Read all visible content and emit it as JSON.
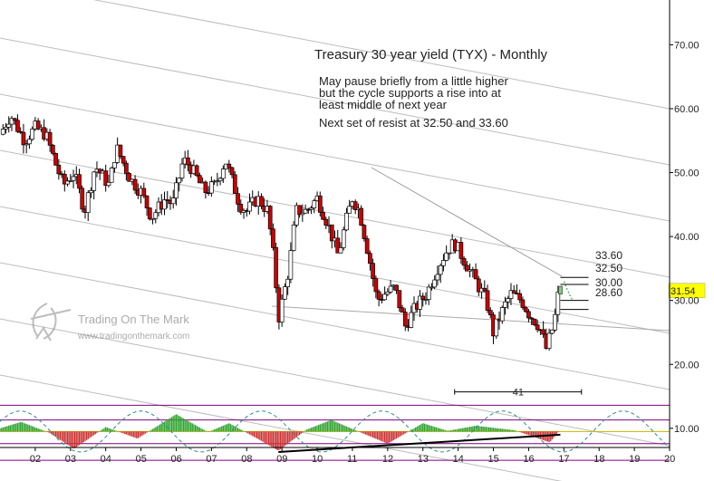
{
  "chart_data": {
    "type": "candlestick",
    "title": "Treasury 30 year yield (TYX) - Monthly",
    "annotations": [
      "May pause briefly from a little higher",
      "but the cycle supports a rise into at",
      "least middle of next year",
      "Next set of resist at 32.50 and 33.60"
    ],
    "y_ticks": [
      "70.00",
      "60.00",
      "50.00",
      "40.00",
      "30.00",
      "20.00",
      "10.00"
    ],
    "y_tick_values": [
      70,
      60,
      50,
      40,
      30,
      20,
      10
    ],
    "ylim": [
      7,
      77
    ],
    "x_ticks": [
      "02",
      "03",
      "04",
      "05",
      "06",
      "07",
      "08",
      "09",
      "10",
      "11",
      "12",
      "13",
      "14",
      "15",
      "16",
      "17",
      "18",
      "19",
      "20"
    ],
    "xlim": [
      2001.1,
      2020.1
    ],
    "last_price": "31.54",
    "resistance_labels": [
      "33.60",
      "32.50",
      "30.00",
      "28.60"
    ],
    "resistance_values": [
      33.6,
      32.5,
      30.0,
      28.6
    ],
    "cycle_label": "41",
    "cycle_span": [
      2014.0,
      2017.6
    ],
    "price_path": [
      [
        2001.1,
        56
      ],
      [
        2001.4,
        59
      ],
      [
        2001.8,
        55
      ],
      [
        2002.1,
        57
      ],
      [
        2002.4,
        56
      ],
      [
        2002.7,
        51
      ],
      [
        2002.9,
        48
      ],
      [
        2003.2,
        50
      ],
      [
        2003.5,
        44
      ],
      [
        2003.8,
        51
      ],
      [
        2004.2,
        48
      ],
      [
        2004.4,
        54
      ],
      [
        2004.8,
        49
      ],
      [
        2005.1,
        47
      ],
      [
        2005.4,
        43
      ],
      [
        2005.8,
        46
      ],
      [
        2006.0,
        45
      ],
      [
        2006.3,
        52
      ],
      [
        2006.5,
        51
      ],
      [
        2006.9,
        47
      ],
      [
        2007.2,
        48
      ],
      [
        2007.5,
        52
      ],
      [
        2007.9,
        45
      ],
      [
        2008.1,
        44
      ],
      [
        2008.4,
        46
      ],
      [
        2008.7,
        44
      ],
      [
        2008.9,
        35
      ],
      [
        2009.0,
        27
      ],
      [
        2009.3,
        35
      ],
      [
        2009.5,
        44
      ],
      [
        2009.8,
        44
      ],
      [
        2010.1,
        46
      ],
      [
        2010.4,
        42
      ],
      [
        2010.7,
        37
      ],
      [
        2010.9,
        42
      ],
      [
        2011.1,
        46
      ],
      [
        2011.3,
        44
      ],
      [
        2011.6,
        36
      ],
      [
        2011.8,
        30
      ],
      [
        2012.0,
        31
      ],
      [
        2012.3,
        32
      ],
      [
        2012.6,
        26
      ],
      [
        2012.9,
        29
      ],
      [
        2013.2,
        31
      ],
      [
        2013.5,
        35
      ],
      [
        2013.8,
        38
      ],
      [
        2014.0,
        39
      ],
      [
        2014.3,
        36
      ],
      [
        2014.6,
        33
      ],
      [
        2014.9,
        30
      ],
      [
        2015.1,
        25
      ],
      [
        2015.4,
        29
      ],
      [
        2015.6,
        31
      ],
      [
        2015.9,
        30
      ],
      [
        2016.1,
        28
      ],
      [
        2016.4,
        26
      ],
      [
        2016.6,
        22.5
      ],
      [
        2016.8,
        26
      ],
      [
        2016.9,
        29
      ],
      [
        2016.95,
        31.5
      ]
    ],
    "oscillator_path": [
      [
        2001.1,
        10.0
      ],
      [
        2001.7,
        11.0
      ],
      [
        2002.5,
        9.3
      ],
      [
        2003.2,
        6.8
      ],
      [
        2004.1,
        10.2
      ],
      [
        2005.0,
        8.4
      ],
      [
        2006.1,
        12.2
      ],
      [
        2007.0,
        9.4
      ],
      [
        2007.6,
        10.8
      ],
      [
        2008.4,
        8.4
      ],
      [
        2009.0,
        6.5
      ],
      [
        2009.8,
        9.8
      ],
      [
        2010.5,
        11.3
      ],
      [
        2011.4,
        9.2
      ],
      [
        2012.1,
        7.6
      ],
      [
        2013.1,
        10.8
      ],
      [
        2013.8,
        9.6
      ],
      [
        2014.6,
        10.4
      ],
      [
        2015.7,
        9.7
      ],
      [
        2016.7,
        7.8
      ],
      [
        2016.95,
        9.5
      ]
    ],
    "projection_path": [
      [
        2016.95,
        9.6
      ],
      [
        2017.5,
        12.6
      ],
      [
        2018.1,
        11.4
      ],
      [
        2018.6,
        8.6
      ],
      [
        2019.1,
        6.4
      ],
      [
        2019.6,
        6.8
      ],
      [
        2020.1,
        9.0
      ]
    ],
    "colors": {
      "up": "#ffffff",
      "down": "#cc0000",
      "wick": "#000000",
      "projection": "#7fd07f",
      "cycle": "#2e8b8b",
      "bands": "#800080",
      "price_label": "#ffff00"
    }
  }
}
